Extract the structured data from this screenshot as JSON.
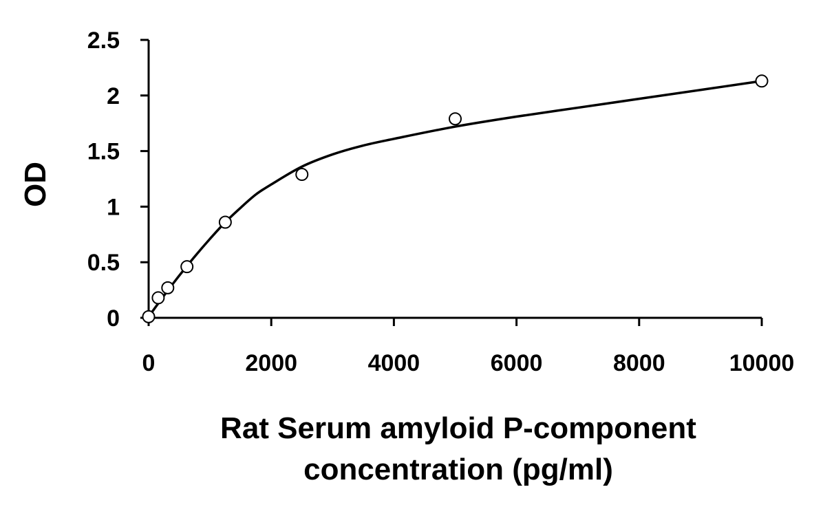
{
  "chart_data": {
    "type": "scatter",
    "title": "",
    "xlabel_lines": [
      "Rat Serum amyloid P-component",
      "concentration (pg/ml)"
    ],
    "ylabel": "OD",
    "xlim": [
      0,
      10000
    ],
    "ylim": [
      0,
      2.5
    ],
    "x_ticks": [
      0,
      2000,
      4000,
      6000,
      8000,
      10000
    ],
    "x_tick_labels": [
      "0",
      "2000",
      "4000",
      "6000",
      "8000",
      "10000"
    ],
    "y_ticks": [
      0,
      0.5,
      1,
      1.5,
      2,
      2.5
    ],
    "y_tick_labels": [
      "0",
      "0.5",
      "1",
      "1.5",
      "2",
      "2.5"
    ],
    "grid": false,
    "legend": "none",
    "points": {
      "x": [
        0,
        156,
        312,
        625,
        1250,
        2500,
        5000,
        10000
      ],
      "y": [
        0.01,
        0.18,
        0.27,
        0.46,
        0.86,
        1.29,
        1.79,
        2.13
      ]
    },
    "fit_curve": {
      "x": [
        0,
        250,
        500,
        750,
        1000,
        1250,
        1500,
        1750,
        2000,
        2500,
        3000,
        3500,
        4000,
        5000,
        6000,
        7000,
        8000,
        9000,
        10000
      ],
      "y": [
        0.01,
        0.2,
        0.38,
        0.55,
        0.71,
        0.86,
        0.99,
        1.11,
        1.2,
        1.36,
        1.47,
        1.55,
        1.61,
        1.72,
        1.81,
        1.89,
        1.97,
        2.05,
        2.13
      ]
    },
    "colors": {
      "axis": "#000000",
      "marker_stroke": "#000000",
      "marker_fill": "#ffffff",
      "curve": "#000000",
      "background": "#ffffff"
    }
  }
}
